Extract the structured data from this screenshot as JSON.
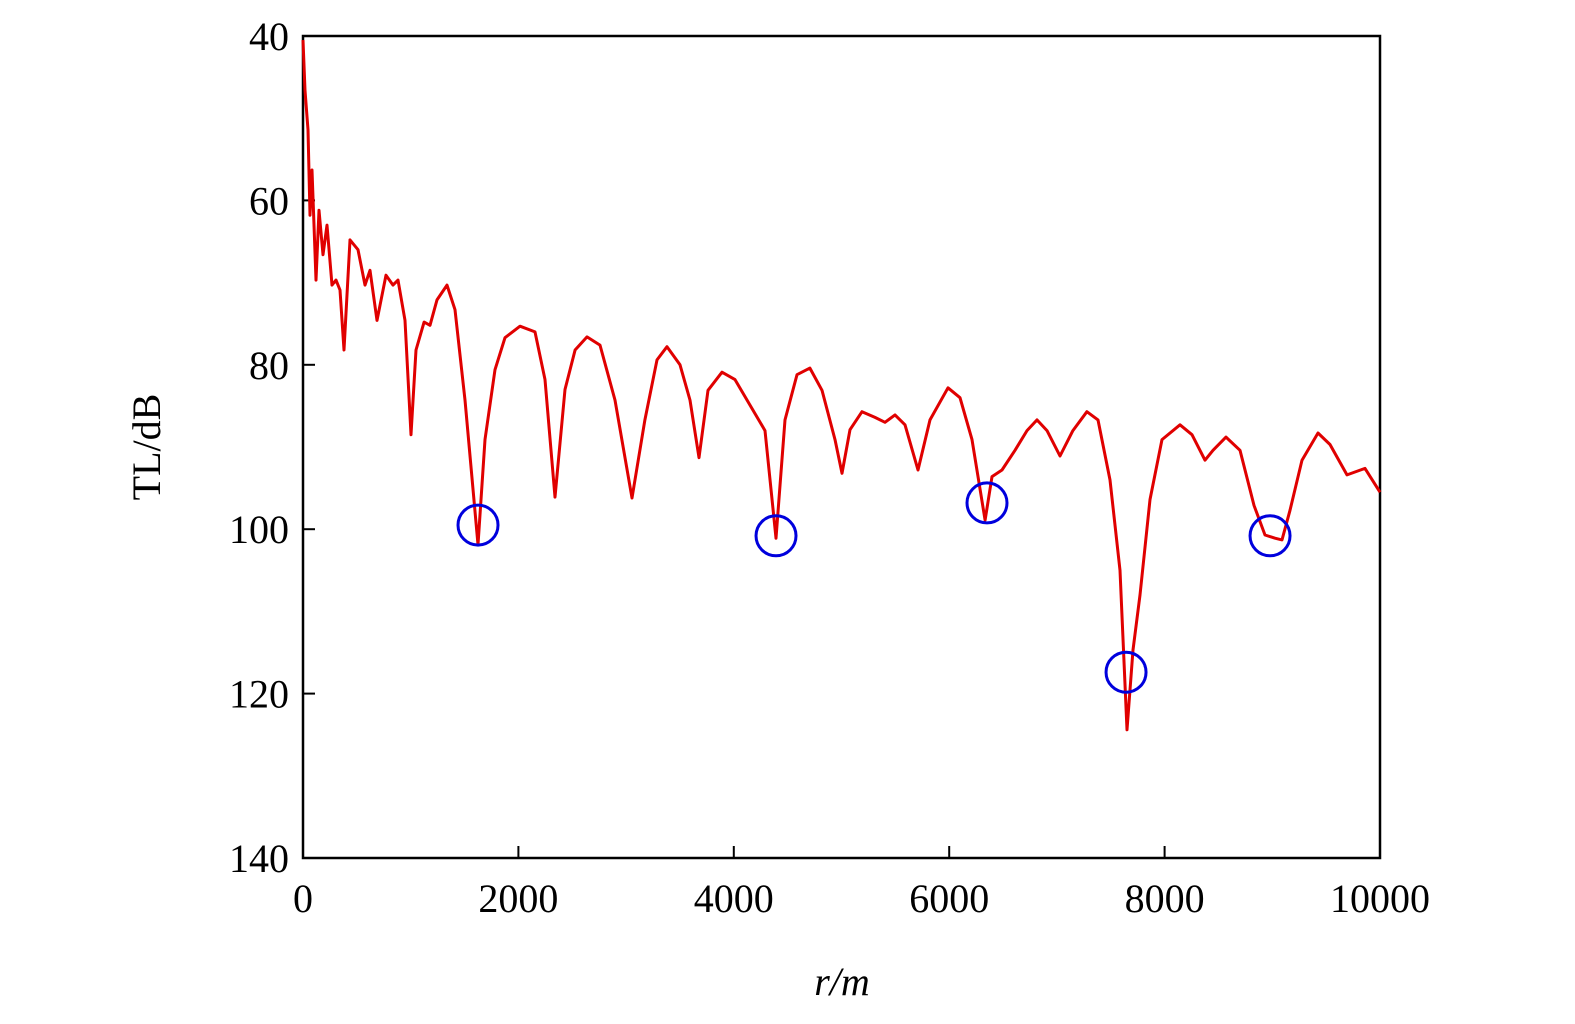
{
  "chart_data": {
    "type": "line",
    "xlabel": "r/m",
    "ylabel": "TL/dB",
    "xlim": [
      0,
      10000
    ],
    "xticks": [
      0,
      2000,
      4000,
      6000,
      8000,
      10000
    ],
    "ylim": [
      40,
      140
    ],
    "yticks": [
      40,
      60,
      80,
      100,
      120,
      140
    ],
    "y_inverted": true,
    "color": "#e00000",
    "x": [
      0,
      19,
      46,
      65,
      84,
      121,
      149,
      186,
      223,
      269,
      306,
      344,
      381,
      436,
      511,
      576,
      622,
      687,
      771,
      836,
      882,
      947,
      1003,
      1049,
      1124,
      1179,
      1244,
      1337,
      1411,
      1504,
      1625,
      1690,
      1783,
      1876,
      2015,
      2154,
      2247,
      2340,
      2433,
      2526,
      2637,
      2758,
      2897,
      3055,
      3175,
      3287,
      3380,
      3500,
      3593,
      3677,
      3760,
      3890,
      4011,
      4150,
      4290,
      4392,
      4475,
      4587,
      4707,
      4819,
      4940,
      5005,
      5079,
      5190,
      5311,
      5404,
      5497,
      5590,
      5710,
      5822,
      5989,
      6100,
      6212,
      6333,
      6397,
      6490,
      6611,
      6722,
      6815,
      6908,
      7029,
      7149,
      7279,
      7382,
      7493,
      7586,
      7651,
      7707,
      7772,
      7864,
      7976,
      8143,
      8254,
      8375,
      8449,
      8570,
      8700,
      8830,
      8932,
      9025,
      9090,
      9164,
      9276,
      9424,
      9536,
      9694,
      9861,
      10000
    ],
    "values": [
      40.5,
      46.6,
      51.4,
      61.8,
      56.3,
      69.7,
      61.2,
      66.6,
      63,
      70.3,
      69.7,
      70.9,
      78.2,
      64.8,
      66,
      70.3,
      68.5,
      74.6,
      69.1,
      70.3,
      69.7,
      74.6,
      88.5,
      78.2,
      74.8,
      75.2,
      72.1,
      70.3,
      73.3,
      84.3,
      101.9,
      89.1,
      80.6,
      76.7,
      75.3,
      76,
      81.8,
      96.1,
      83,
      78.2,
      76.6,
      77.6,
      84.3,
      96.2,
      86.7,
      79.4,
      77.8,
      80,
      84.3,
      91.3,
      83.1,
      80.9,
      81.8,
      84.9,
      88,
      101.1,
      86.7,
      81.2,
      80.4,
      83.1,
      89.1,
      93.2,
      87.9,
      85.7,
      86.4,
      87,
      86.1,
      87.3,
      92.8,
      86.7,
      82.8,
      84,
      89.1,
      98.9,
      93.6,
      92.8,
      90.4,
      88,
      86.7,
      88,
      91.1,
      88,
      85.7,
      86.7,
      94,
      105,
      124.4,
      114.7,
      108,
      96.4,
      89.1,
      87.3,
      88.5,
      91.6,
      90.4,
      88.8,
      90.4,
      97.1,
      100.7,
      101.1,
      101.3,
      97.7,
      91.6,
      88.3,
      89.7,
      93.4,
      92.6,
      95.5
    ],
    "markers": {
      "color": "#0000dd",
      "x": [
        1625,
        4392,
        6351,
        7642,
        8979
      ],
      "values": [
        99.5,
        100.8,
        96.8,
        117.4,
        100.8
      ]
    }
  }
}
